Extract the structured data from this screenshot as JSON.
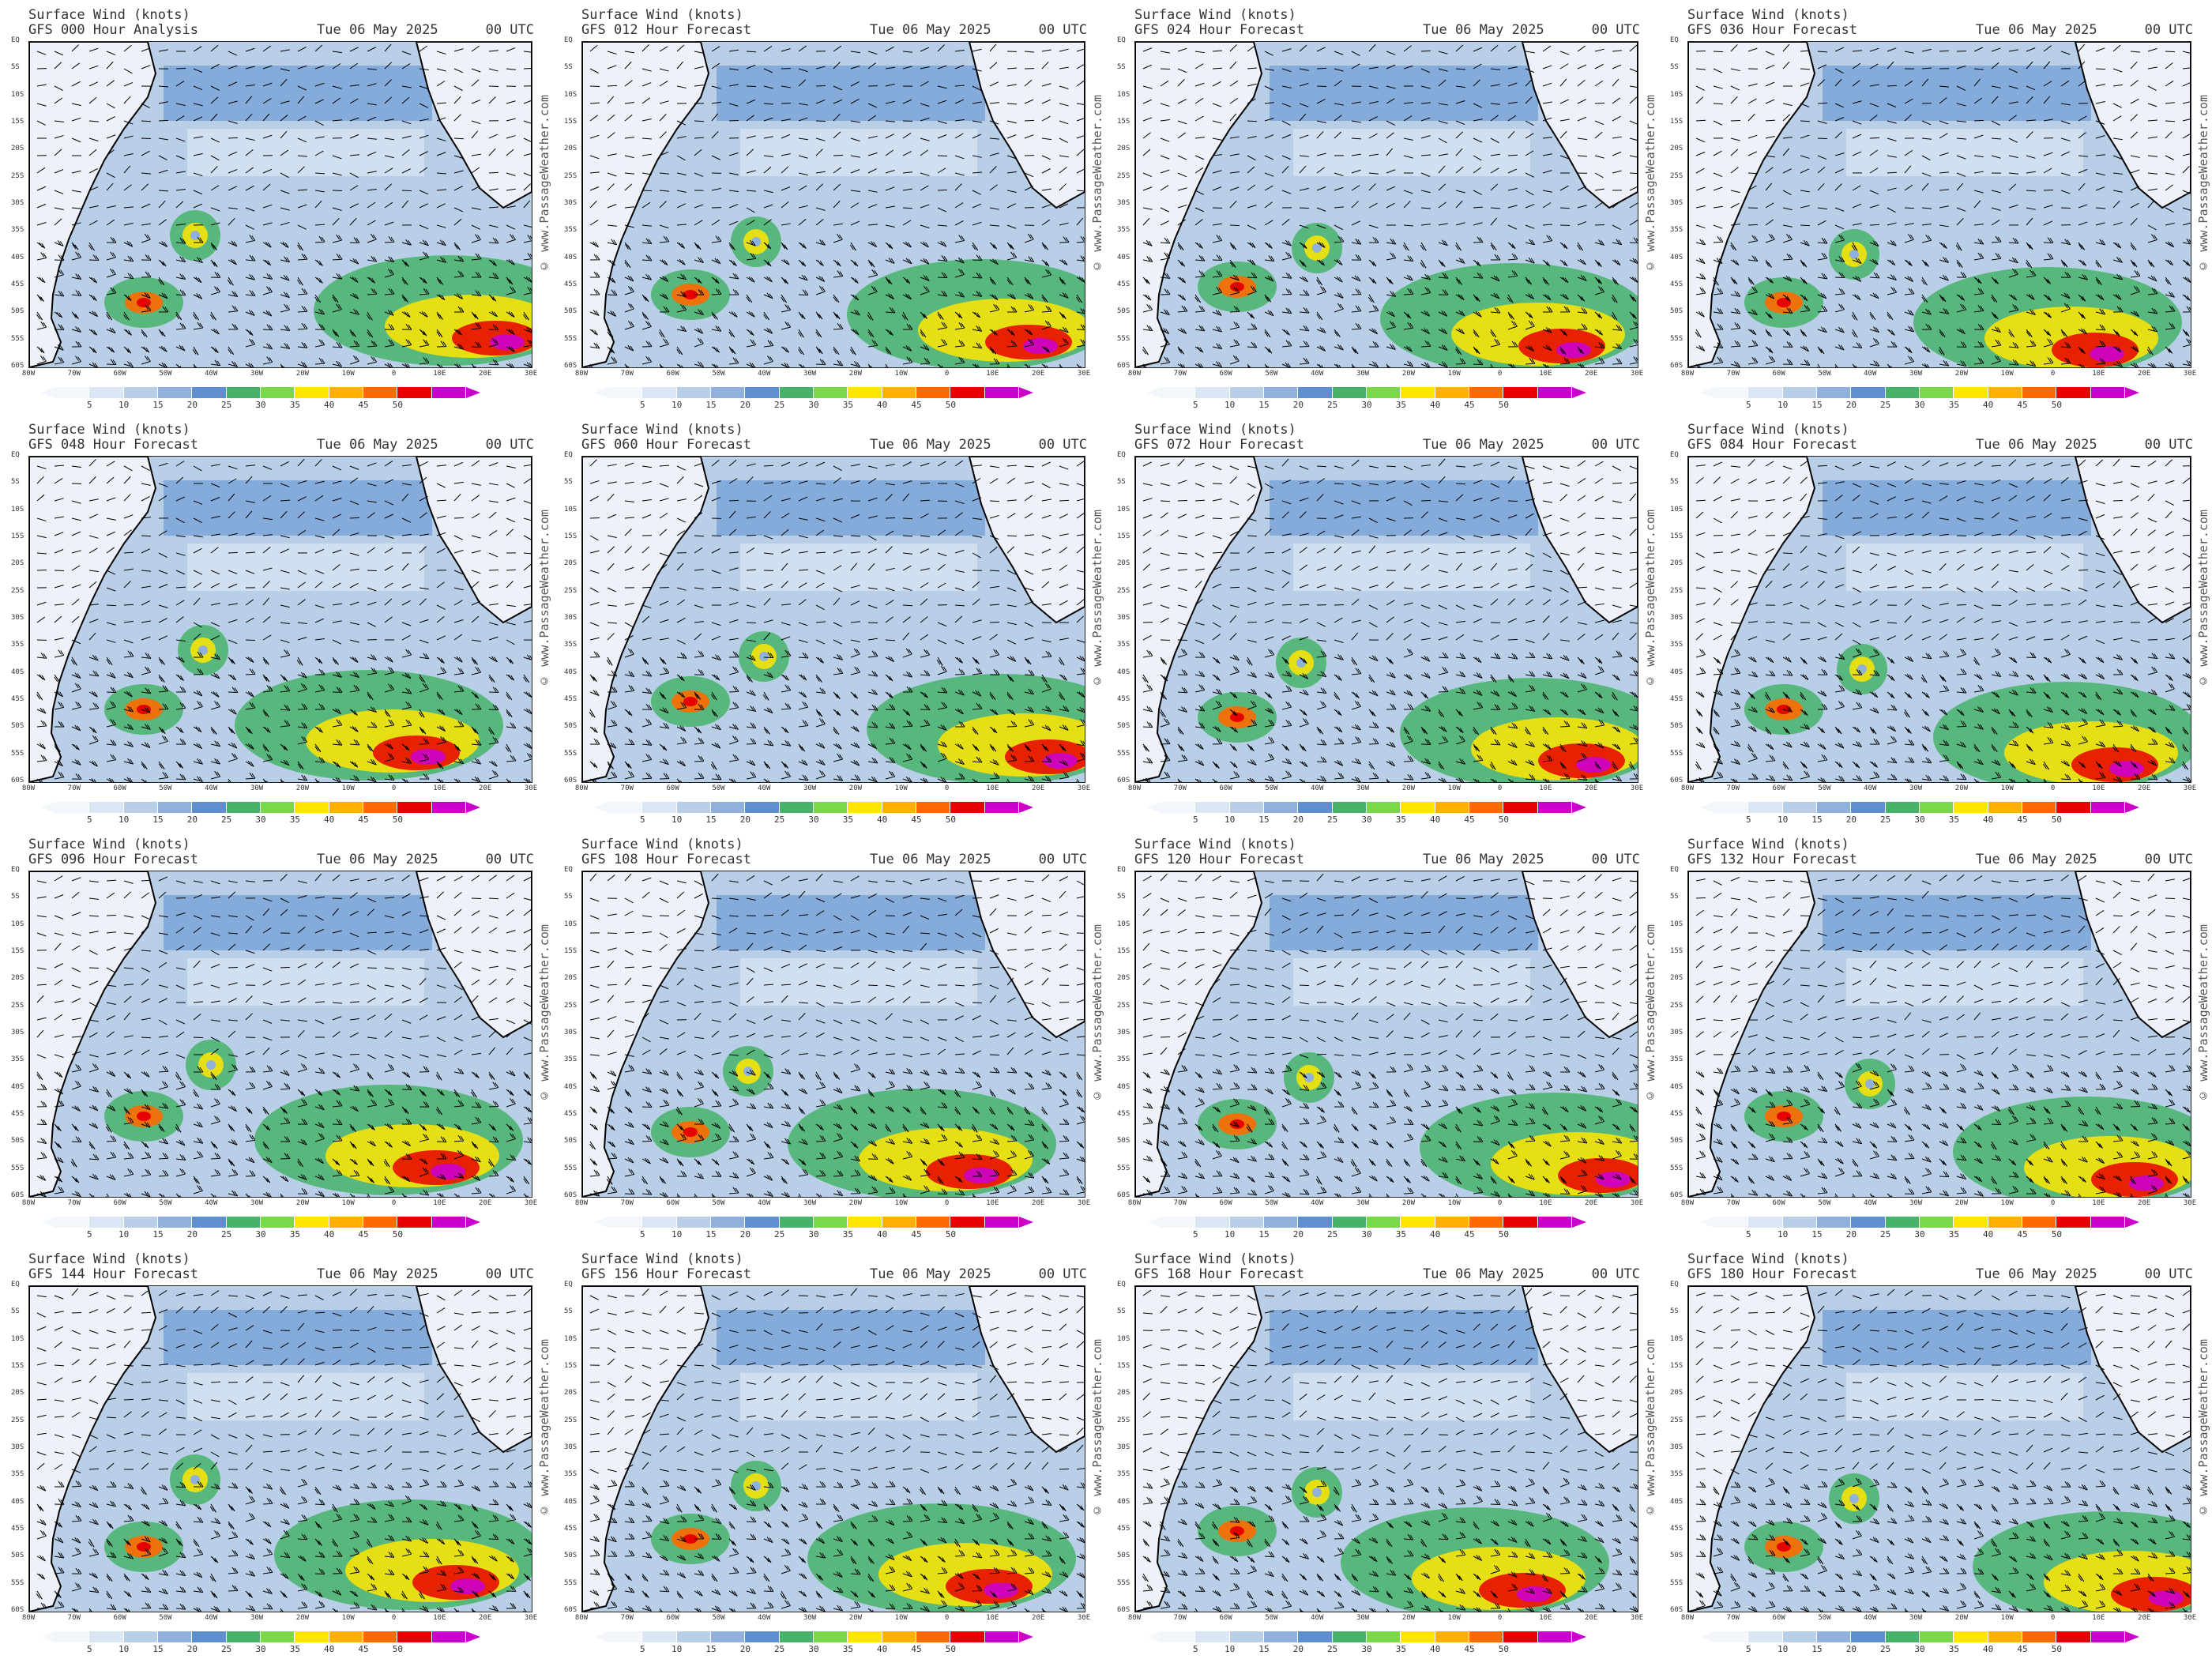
{
  "chart_data": {
    "type": "other",
    "title": "Surface Wind (knots)",
    "model": "GFS",
    "run": {
      "date": "Tue 06 May 2025",
      "time": "00 UTC"
    },
    "watermark": "© www.PassageWeather.com",
    "lat_labels": [
      "EQ",
      "5S",
      "10S",
      "15S",
      "20S",
      "25S",
      "30S",
      "35S",
      "40S",
      "45S",
      "50S",
      "55S",
      "60S"
    ],
    "lon_labels": [
      "80W",
      "70W",
      "60W",
      "50W",
      "40W",
      "30W",
      "20W",
      "10W",
      "0",
      "10E",
      "20E",
      "30E"
    ],
    "colorbar": {
      "ticks": [
        "5",
        "10",
        "15",
        "20",
        "25",
        "30",
        "35",
        "40",
        "45",
        "50"
      ],
      "colors": [
        "#f3f6fb",
        "#dbe6f4",
        "#b9cfe8",
        "#8fb1dc",
        "#5f8fcf",
        "#47b36a",
        "#7bd84a",
        "#ffe600",
        "#ffb000",
        "#ff6a00",
        "#e60000",
        "#cc00cc"
      ]
    },
    "panels": [
      {
        "forecast": "GFS 000 Hour Analysis"
      },
      {
        "forecast": "GFS 012 Hour Forecast"
      },
      {
        "forecast": "GFS 024 Hour Forecast"
      },
      {
        "forecast": "GFS 036 Hour Forecast"
      },
      {
        "forecast": "GFS 048 Hour Forecast"
      },
      {
        "forecast": "GFS 060 Hour Forecast"
      },
      {
        "forecast": "GFS 072 Hour Forecast"
      },
      {
        "forecast": "GFS 084 Hour Forecast"
      },
      {
        "forecast": "GFS 096 Hour Forecast"
      },
      {
        "forecast": "GFS 108 Hour Forecast"
      },
      {
        "forecast": "GFS 120 Hour Forecast"
      },
      {
        "forecast": "GFS 132 Hour Forecast"
      },
      {
        "forecast": "GFS 144 Hour Forecast"
      },
      {
        "forecast": "GFS 156 Hour Forecast"
      },
      {
        "forecast": "GFS 168 Hour Forecast"
      },
      {
        "forecast": "GFS 180 Hour Forecast"
      }
    ]
  }
}
